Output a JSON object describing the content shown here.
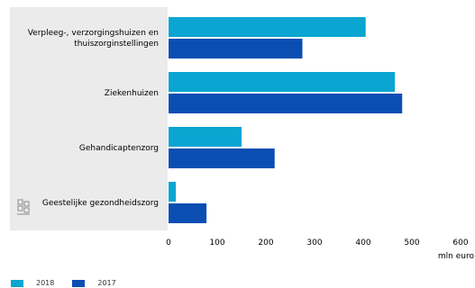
{
  "chart_data": {
    "type": "bar",
    "orientation": "horizontal",
    "categories": [
      "Verpleeg-, verzorgingshuizen en thuiszorginstellingen",
      "Ziekenhuizen",
      "Gehandicaptenzorg",
      "Geestelijke gezondheidszorg"
    ],
    "category_label_lines": [
      [
        "Verpleeg-, verzorgingshuizen en",
        "thuiszorginstellingen"
      ],
      [
        "Ziekenhuizen"
      ],
      [
        "Gehandicaptenzorg"
      ],
      [
        "Geestelijke gezondheidszorg"
      ]
    ],
    "series": [
      {
        "name": "2018",
        "color": "#0aa5d1",
        "values": [
          405,
          465,
          150,
          15
        ]
      },
      {
        "name": "2017",
        "color": "#0b4eb3",
        "values": [
          275,
          480,
          218,
          78
        ]
      }
    ],
    "x_ticks": [
      "0",
      "100",
      "200",
      "300",
      "400",
      "500",
      "600"
    ],
    "xlim": [
      0,
      600
    ],
    "xlabel": "mln euro",
    "grid": false,
    "legend_position": "bottom-left",
    "logo": "cbs-logo-icon"
  }
}
